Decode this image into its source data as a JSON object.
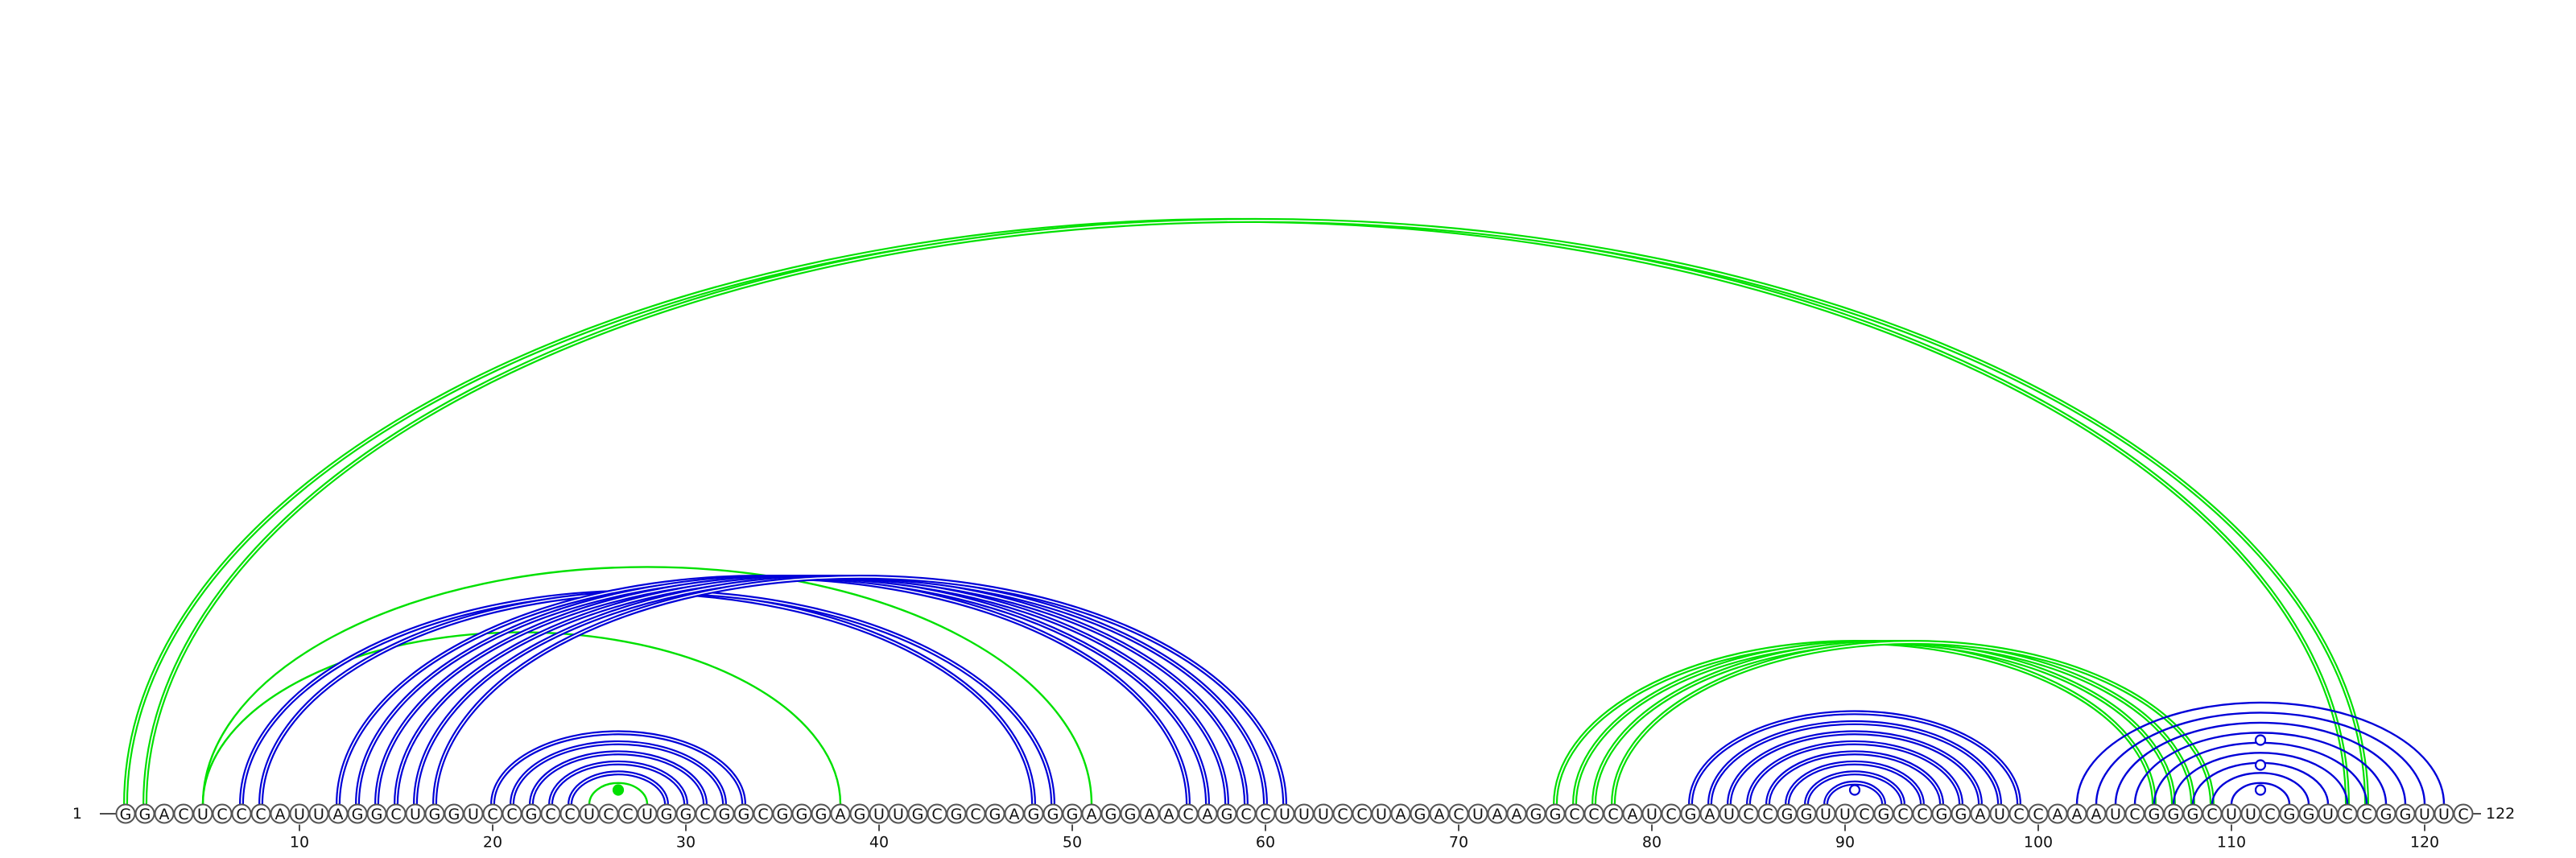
{
  "start_label": "1",
  "end_label": "122",
  "sequence": "GGACUCCCAUUAGGCUGGUCCGCCUCCUGGCGGCGGGAGUUGCGCGAGGGAGGAACAGCCUUUCCUAGACUAAGGCCCAUCGAUCCGGUUCGCCGGAUCCAAAUCGGGCUUCGGUCCGGUUC",
  "ticks": [
    10,
    20,
    30,
    40,
    50,
    60,
    70,
    80,
    90,
    100,
    110,
    120
  ],
  "colors": {
    "green": "#00e000",
    "blue": "#0000d8"
  },
  "pairs": [
    {
      "i": 1,
      "j": 116,
      "color": "green",
      "double": true
    },
    {
      "i": 2,
      "j": 117,
      "color": "green",
      "double": true
    },
    {
      "i": 5,
      "j": 51,
      "color": "green",
      "double": false
    },
    {
      "i": 5,
      "j": 38,
      "color": "green",
      "double": false
    },
    {
      "i": 7,
      "j": 48,
      "color": "blue",
      "double": true
    },
    {
      "i": 8,
      "j": 49,
      "color": "blue",
      "double": true
    },
    {
      "i": 12,
      "j": 56,
      "color": "blue",
      "double": true
    },
    {
      "i": 13,
      "j": 57,
      "color": "blue",
      "double": true
    },
    {
      "i": 14,
      "j": 58,
      "color": "blue",
      "double": true
    },
    {
      "i": 15,
      "j": 59,
      "color": "blue",
      "double": true
    },
    {
      "i": 16,
      "j": 60,
      "color": "blue",
      "double": true
    },
    {
      "i": 17,
      "j": 61,
      "color": "blue",
      "double": true
    },
    {
      "i": 20,
      "j": 33,
      "color": "blue",
      "double": true
    },
    {
      "i": 21,
      "j": 32,
      "color": "blue",
      "double": true
    },
    {
      "i": 22,
      "j": 31,
      "color": "blue",
      "double": true
    },
    {
      "i": 23,
      "j": 30,
      "color": "blue",
      "double": true
    },
    {
      "i": 24,
      "j": 29,
      "color": "blue",
      "double": true
    },
    {
      "i": 25,
      "j": 28,
      "color": "green",
      "double": false
    },
    {
      "i": 75,
      "j": 106,
      "color": "green",
      "double": true
    },
    {
      "i": 76,
      "j": 107,
      "color": "green",
      "double": true
    },
    {
      "i": 77,
      "j": 108,
      "color": "green",
      "double": true
    },
    {
      "i": 78,
      "j": 109,
      "color": "green",
      "double": true
    },
    {
      "i": 82,
      "j": 99,
      "color": "blue",
      "double": true
    },
    {
      "i": 83,
      "j": 98,
      "color": "blue",
      "double": true
    },
    {
      "i": 84,
      "j": 97,
      "color": "blue",
      "double": true
    },
    {
      "i": 85,
      "j": 96,
      "color": "blue",
      "double": true
    },
    {
      "i": 86,
      "j": 95,
      "color": "blue",
      "double": true
    },
    {
      "i": 87,
      "j": 94,
      "color": "blue",
      "double": true
    },
    {
      "i": 88,
      "j": 93,
      "color": "blue",
      "double": true
    },
    {
      "i": 89,
      "j": 92,
      "color": "blue",
      "double": true
    },
    {
      "i": 102,
      "j": 121,
      "color": "blue",
      "double": false
    },
    {
      "i": 103,
      "j": 120,
      "color": "blue",
      "double": false
    },
    {
      "i": 104,
      "j": 119,
      "color": "blue",
      "double": false
    },
    {
      "i": 105,
      "j": 118,
      "color": "blue",
      "double": false
    },
    {
      "i": 106,
      "j": 117,
      "color": "blue",
      "double": false
    },
    {
      "i": 107,
      "j": 116,
      "color": "blue",
      "double": false
    },
    {
      "i": 108,
      "j": 115,
      "color": "blue",
      "double": false
    },
    {
      "i": 109,
      "j": 114,
      "color": "blue",
      "double": false
    },
    {
      "i": 110,
      "j": 113,
      "color": "blue",
      "double": false
    }
  ],
  "markers": [
    {
      "pos": 26.5,
      "level": 1,
      "color": "green",
      "filled": true
    },
    {
      "pos": 90.5,
      "level": 1,
      "color": "blue",
      "filled": false
    },
    {
      "pos": 111.5,
      "level": 1,
      "color": "blue",
      "filled": false
    },
    {
      "pos": 111.5,
      "level": 2,
      "color": "blue",
      "filled": false
    },
    {
      "pos": 111.5,
      "level": 3,
      "color": "blue",
      "filled": false
    }
  ]
}
